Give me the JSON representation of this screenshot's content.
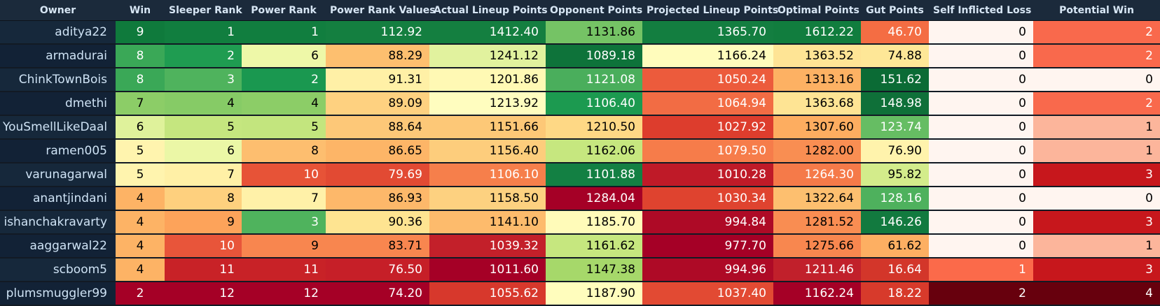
{
  "columns": [
    "Owner",
    "Win",
    "Sleeper Rank",
    "Power Rank",
    "Power Rank Values",
    "Actual Lineup Points",
    "Opponent Points",
    "Projected Lineup Points",
    "Optimal Points",
    "Gut Points",
    "Self Inflicted Loss",
    "Potential Win"
  ],
  "rows": [
    {
      "owner": "aditya22",
      "cells": [
        {
          "v": "9",
          "bg": "#0f7a3c",
          "fg": "#ffffff"
        },
        {
          "v": "1",
          "bg": "#117e3f",
          "fg": "#ffffff"
        },
        {
          "v": "1",
          "bg": "#117e3f",
          "fg": "#ffffff"
        },
        {
          "v": "112.92",
          "bg": "#147f40",
          "fg": "#ffffff"
        },
        {
          "v": "1412.40",
          "bg": "#147f40",
          "fg": "#ffffff"
        },
        {
          "v": "1131.86",
          "bg": "#75c365",
          "fg": "#000000"
        },
        {
          "v": "1365.70",
          "bg": "#137e40",
          "fg": "#ffffff"
        },
        {
          "v": "1612.22",
          "bg": "#117d3e",
          "fg": "#ffffff"
        },
        {
          "v": "46.70",
          "bg": "#f46d43",
          "fg": "#ffffff"
        },
        {
          "v": "0",
          "bg": "#fff5f0",
          "fg": "#000000"
        },
        {
          "v": "2",
          "bg": "#f9694c",
          "fg": "#ffffff"
        }
      ]
    },
    {
      "owner": "armadurai",
      "cells": [
        {
          "v": "8",
          "bg": "#3aa857",
          "fg": "#ffffff"
        },
        {
          "v": "2",
          "bg": "#1f9c51",
          "fg": "#ffffff"
        },
        {
          "v": "6",
          "bg": "#eef8a8",
          "fg": "#000000"
        },
        {
          "v": "88.29",
          "bg": "#fdbf6f",
          "fg": "#000000"
        },
        {
          "v": "1241.12",
          "bg": "#e1f29e",
          "fg": "#000000"
        },
        {
          "v": "1089.18",
          "bg": "#0e733a",
          "fg": "#ffffff"
        },
        {
          "v": "1166.24",
          "bg": "#fffcbc",
          "fg": "#000000"
        },
        {
          "v": "1363.52",
          "bg": "#fee495",
          "fg": "#000000"
        },
        {
          "v": "74.88",
          "bg": "#fee797",
          "fg": "#000000"
        },
        {
          "v": "0",
          "bg": "#fff5f0",
          "fg": "#000000"
        },
        {
          "v": "2",
          "bg": "#f9694c",
          "fg": "#ffffff"
        }
      ]
    },
    {
      "owner": "ChinkTownBois",
      "cells": [
        {
          "v": "8",
          "bg": "#3aa857",
          "fg": "#ffffff"
        },
        {
          "v": "3",
          "bg": "#4fb35d",
          "fg": "#ffffff"
        },
        {
          "v": "2",
          "bg": "#1a9850",
          "fg": "#ffffff"
        },
        {
          "v": "91.31",
          "bg": "#fff0a6",
          "fg": "#000000"
        },
        {
          "v": "1201.86",
          "bg": "#fff9b4",
          "fg": "#000000"
        },
        {
          "v": "1121.08",
          "bg": "#4aae5c",
          "fg": "#ffffff"
        },
        {
          "v": "1050.24",
          "bg": "#ec5b3c",
          "fg": "#ffffff"
        },
        {
          "v": "1313.16",
          "bg": "#fdb163",
          "fg": "#000000"
        },
        {
          "v": "151.62",
          "bg": "#0b6b35",
          "fg": "#ffffff"
        },
        {
          "v": "0",
          "bg": "#fff5f0",
          "fg": "#000000"
        },
        {
          "v": "0",
          "bg": "#fff5f0",
          "fg": "#000000"
        }
      ]
    },
    {
      "owner": "dmethi",
      "cells": [
        {
          "v": "7",
          "bg": "#8ccd67",
          "fg": "#000000"
        },
        {
          "v": "4",
          "bg": "#86cb66",
          "fg": "#000000"
        },
        {
          "v": "4",
          "bg": "#8ccd67",
          "fg": "#000000"
        },
        {
          "v": "89.09",
          "bg": "#fed180",
          "fg": "#000000"
        },
        {
          "v": "1213.92",
          "bg": "#fffdbf",
          "fg": "#000000"
        },
        {
          "v": "1106.40",
          "bg": "#1c9a50",
          "fg": "#ffffff"
        },
        {
          "v": "1064.94",
          "bg": "#f26c44",
          "fg": "#ffffff"
        },
        {
          "v": "1363.68",
          "bg": "#fee494",
          "fg": "#000000"
        },
        {
          "v": "148.98",
          "bg": "#0f7039",
          "fg": "#ffffff"
        },
        {
          "v": "0",
          "bg": "#fff5f0",
          "fg": "#000000"
        },
        {
          "v": "2",
          "bg": "#f9694c",
          "fg": "#ffffff"
        }
      ]
    },
    {
      "owner": "YouSmellLikeDaal",
      "cells": [
        {
          "v": "6",
          "bg": "#dff29b",
          "fg": "#000000"
        },
        {
          "v": "5",
          "bg": "#c5e67f",
          "fg": "#000000"
        },
        {
          "v": "5",
          "bg": "#c3e57e",
          "fg": "#000000"
        },
        {
          "v": "88.64",
          "bg": "#fdc878",
          "fg": "#000000"
        },
        {
          "v": "1151.66",
          "bg": "#fdc877",
          "fg": "#000000"
        },
        {
          "v": "1210.50",
          "bg": "#fed885",
          "fg": "#000000"
        },
        {
          "v": "1027.92",
          "bg": "#dd3d2d",
          "fg": "#ffffff"
        },
        {
          "v": "1307.60",
          "bg": "#fdad60",
          "fg": "#000000"
        },
        {
          "v": "123.74",
          "bg": "#66bd63",
          "fg": "#ffffff"
        },
        {
          "v": "0",
          "bg": "#fff5f0",
          "fg": "#000000"
        },
        {
          "v": "1",
          "bg": "#fcb59b",
          "fg": "#000000"
        }
      ]
    },
    {
      "owner": "ramen005",
      "cells": [
        {
          "v": "5",
          "bg": "#fff4ae",
          "fg": "#000000"
        },
        {
          "v": "6",
          "bg": "#ebf7a6",
          "fg": "#000000"
        },
        {
          "v": "8",
          "bg": "#fdbe6f",
          "fg": "#000000"
        },
        {
          "v": "86.65",
          "bg": "#fdb567",
          "fg": "#000000"
        },
        {
          "v": "1156.40",
          "bg": "#fdcd7c",
          "fg": "#000000"
        },
        {
          "v": "1162.06",
          "bg": "#c6e77f",
          "fg": "#000000"
        },
        {
          "v": "1079.50",
          "bg": "#f67c4a",
          "fg": "#ffffff"
        },
        {
          "v": "1282.00",
          "bg": "#f98e52",
          "fg": "#000000"
        },
        {
          "v": "76.90",
          "bg": "#fff3ac",
          "fg": "#000000"
        },
        {
          "v": "0",
          "bg": "#fff5f0",
          "fg": "#000000"
        },
        {
          "v": "1",
          "bg": "#fcb59b",
          "fg": "#000000"
        }
      ]
    },
    {
      "owner": "varunagarwal",
      "cells": [
        {
          "v": "5",
          "bg": "#fff4ae",
          "fg": "#000000"
        },
        {
          "v": "7",
          "bg": "#fff0a6",
          "fg": "#000000"
        },
        {
          "v": "10",
          "bg": "#e75337",
          "fg": "#ffffff"
        },
        {
          "v": "79.69",
          "bg": "#e24a33",
          "fg": "#ffffff"
        },
        {
          "v": "1106.10",
          "bg": "#f67f4b",
          "fg": "#ffffff"
        },
        {
          "v": "1101.88",
          "bg": "#138043",
          "fg": "#ffffff"
        },
        {
          "v": "1010.28",
          "bg": "#bf1a28",
          "fg": "#ffffff"
        },
        {
          "v": "1264.30",
          "bg": "#f57a49",
          "fg": "#ffffff"
        },
        {
          "v": "95.82",
          "bg": "#d3ec8b",
          "fg": "#000000"
        },
        {
          "v": "0",
          "bg": "#fff5f0",
          "fg": "#000000"
        },
        {
          "v": "3",
          "bg": "#c7171c",
          "fg": "#ffffff"
        }
      ]
    },
    {
      "owner": "anantjindani",
      "cells": [
        {
          "v": "4",
          "bg": "#fdb365",
          "fg": "#000000"
        },
        {
          "v": "8",
          "bg": "#fed07e",
          "fg": "#000000"
        },
        {
          "v": "7",
          "bg": "#fff1a8",
          "fg": "#000000"
        },
        {
          "v": "86.93",
          "bg": "#fdb86a",
          "fg": "#000000"
        },
        {
          "v": "1158.50",
          "bg": "#fdd180",
          "fg": "#000000"
        },
        {
          "v": "1284.04",
          "bg": "#a50026",
          "fg": "#ffffff"
        },
        {
          "v": "1030.34",
          "bg": "#df432f",
          "fg": "#ffffff"
        },
        {
          "v": "1322.64",
          "bg": "#fdbf6f",
          "fg": "#000000"
        },
        {
          "v": "128.16",
          "bg": "#4eb15d",
          "fg": "#ffffff"
        },
        {
          "v": "0",
          "bg": "#fff5f0",
          "fg": "#000000"
        },
        {
          "v": "0",
          "bg": "#fff5f0",
          "fg": "#000000"
        }
      ]
    },
    {
      "owner": "ishanchakravarty",
      "cells": [
        {
          "v": "4",
          "bg": "#fdb365",
          "fg": "#000000"
        },
        {
          "v": "9",
          "bg": "#fda35a",
          "fg": "#000000"
        },
        {
          "v": "3",
          "bg": "#4fb35d",
          "fg": "#ffffff"
        },
        {
          "v": "90.36",
          "bg": "#fee491",
          "fg": "#000000"
        },
        {
          "v": "1141.10",
          "bg": "#fdbb6c",
          "fg": "#000000"
        },
        {
          "v": "1185.70",
          "bg": "#fffbb9",
          "fg": "#000000"
        },
        {
          "v": "994.84",
          "bg": "#ae0a26",
          "fg": "#ffffff"
        },
        {
          "v": "1281.52",
          "bg": "#f98d52",
          "fg": "#000000"
        },
        {
          "v": "146.26",
          "bg": "#127a3f",
          "fg": "#ffffff"
        },
        {
          "v": "0",
          "bg": "#fff5f0",
          "fg": "#000000"
        },
        {
          "v": "3",
          "bg": "#c7171c",
          "fg": "#ffffff"
        }
      ]
    },
    {
      "owner": "aaggarwal22",
      "cells": [
        {
          "v": "4",
          "bg": "#fdb365",
          "fg": "#000000"
        },
        {
          "v": "10",
          "bg": "#e8553a",
          "fg": "#ffffff"
        },
        {
          "v": "9",
          "bg": "#f8864f",
          "fg": "#000000"
        },
        {
          "v": "83.71",
          "bg": "#f8864f",
          "fg": "#000000"
        },
        {
          "v": "1039.32",
          "bg": "#c3202a",
          "fg": "#ffffff"
        },
        {
          "v": "1161.62",
          "bg": "#c6e77f",
          "fg": "#000000"
        },
        {
          "v": "977.70",
          "bg": "#a50026",
          "fg": "#ffffff"
        },
        {
          "v": "1275.66",
          "bg": "#f8874f",
          "fg": "#000000"
        },
        {
          "v": "61.62",
          "bg": "#fdaf62",
          "fg": "#000000"
        },
        {
          "v": "0",
          "bg": "#fff5f0",
          "fg": "#000000"
        },
        {
          "v": "1",
          "bg": "#fcb59b",
          "fg": "#000000"
        }
      ]
    },
    {
      "owner": "scboom5",
      "cells": [
        {
          "v": "4",
          "bg": "#fdb365",
          "fg": "#000000"
        },
        {
          "v": "11",
          "bg": "#c82227",
          "fg": "#ffffff"
        },
        {
          "v": "11",
          "bg": "#c82227",
          "fg": "#ffffff"
        },
        {
          "v": "76.50",
          "bg": "#c61f28",
          "fg": "#ffffff"
        },
        {
          "v": "1011.60",
          "bg": "#a50026",
          "fg": "#ffffff"
        },
        {
          "v": "1147.38",
          "bg": "#a6d86a",
          "fg": "#000000"
        },
        {
          "v": "994.96",
          "bg": "#ae0a26",
          "fg": "#ffffff"
        },
        {
          "v": "1211.46",
          "bg": "#c1202b",
          "fg": "#ffffff"
        },
        {
          "v": "16.64",
          "bg": "#d3362a",
          "fg": "#ffffff"
        },
        {
          "v": "1",
          "bg": "#fb6a4a",
          "fg": "#ffffff"
        },
        {
          "v": "3",
          "bg": "#c7171c",
          "fg": "#ffffff"
        }
      ]
    },
    {
      "owner": "plumsmuggler99",
      "cells": [
        {
          "v": "2",
          "bg": "#a50026",
          "fg": "#ffffff"
        },
        {
          "v": "12",
          "bg": "#a50026",
          "fg": "#ffffff"
        },
        {
          "v": "12",
          "bg": "#a50026",
          "fg": "#ffffff"
        },
        {
          "v": "74.20",
          "bg": "#a50026",
          "fg": "#ffffff"
        },
        {
          "v": "1055.62",
          "bg": "#d7382c",
          "fg": "#ffffff"
        },
        {
          "v": "1187.90",
          "bg": "#fffdbd",
          "fg": "#000000"
        },
        {
          "v": "1037.40",
          "bg": "#e24a33",
          "fg": "#ffffff"
        },
        {
          "v": "1162.24",
          "bg": "#a50026",
          "fg": "#ffffff"
        },
        {
          "v": "18.22",
          "bg": "#d73a2b",
          "fg": "#ffffff"
        },
        {
          "v": "2",
          "bg": "#67000d",
          "fg": "#ffffff"
        },
        {
          "v": "4",
          "bg": "#67000d",
          "fg": "#ffffff"
        }
      ]
    }
  ]
}
